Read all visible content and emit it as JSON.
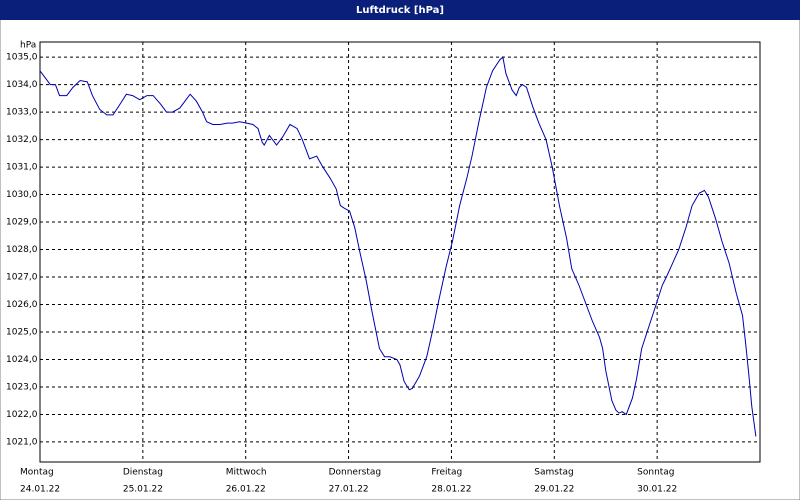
{
  "chart_data": {
    "type": "line",
    "title": "Luftdruck [hPa]",
    "y_label": "hPa",
    "color": "#0000b0",
    "grid": true,
    "xlim": [
      0,
      7
    ],
    "ylim": [
      1020.27,
      1035.55
    ],
    "xticks": [
      {
        "value": 0,
        "label": "Montag",
        "date": "24.01.22"
      },
      {
        "value": 1,
        "label": "Dienstag",
        "date": "25.01.22"
      },
      {
        "value": 2,
        "label": "Mittwoch",
        "date": "26.01.22"
      },
      {
        "value": 3,
        "label": "Donnerstag",
        "date": "27.01.22"
      },
      {
        "value": 4,
        "label": "Freitag",
        "date": "28.01.22"
      },
      {
        "value": 5,
        "label": "Samstag",
        "date": "29.01.22"
      },
      {
        "value": 6,
        "label": "Sonntag",
        "date": "30.01.22"
      }
    ],
    "yticks": [
      {
        "value": 1021,
        "label": "1021,0"
      },
      {
        "value": 1022,
        "label": "1022,0"
      },
      {
        "value": 1023,
        "label": "1023,0"
      },
      {
        "value": 1024,
        "label": "1024,0"
      },
      {
        "value": 1025,
        "label": "1025,0"
      },
      {
        "value": 1026,
        "label": "1026,0"
      },
      {
        "value": 1027,
        "label": "1027,0"
      },
      {
        "value": 1028,
        "label": "1028,0"
      },
      {
        "value": 1029,
        "label": "1029,0"
      },
      {
        "value": 1030,
        "label": "1030,0"
      },
      {
        "value": 1031,
        "label": "1031,0"
      },
      {
        "value": 1032,
        "label": "1032,0"
      },
      {
        "value": 1033,
        "label": "1033,0"
      },
      {
        "value": 1034,
        "label": "1034,0"
      },
      {
        "value": 1035,
        "label": "1035,0"
      }
    ],
    "x": [
      0,
      0.1,
      0.15,
      0.19,
      0.26,
      0.32,
      0.39,
      0.46,
      0.51,
      0.58,
      0.65,
      0.71,
      0.78,
      0.84,
      0.9,
      0.97,
      1.04,
      1.1,
      1.17,
      1.23,
      1.29,
      1.36,
      1.43,
      1.46,
      1.52,
      1.58,
      1.62,
      1.68,
      1.75,
      1.82,
      1.87,
      1.94,
      2.01,
      2.07,
      2.12,
      2.16,
      2.18,
      2.23,
      2.3,
      2.36,
      2.43,
      2.5,
      2.55,
      2.62,
      2.69,
      2.75,
      2.82,
      2.88,
      2.92,
      2.96,
      3.01,
      3.06,
      3.11,
      3.17,
      3.23,
      3.3,
      3.35,
      3.4,
      3.47,
      3.5,
      3.54,
      3.59,
      3.62,
      3.69,
      3.76,
      3.82,
      3.88,
      3.95,
      4.01,
      4.08,
      4.15,
      4.2,
      4.27,
      4.34,
      4.4,
      4.47,
      4.5,
      4.53,
      4.59,
      4.63,
      4.66,
      4.69,
      4.73,
      4.79,
      4.85,
      4.92,
      4.98,
      5.05,
      5.12,
      5.17,
      5.24,
      5.31,
      5.37,
      5.44,
      5.47,
      5.5,
      5.56,
      5.6,
      5.63,
      5.66,
      5.7,
      5.76,
      5.8,
      5.85,
      5.92,
      5.99,
      6.05,
      6.09,
      6.15,
      6.21,
      6.28,
      6.34,
      6.41,
      6.46,
      6.5,
      6.57,
      6.63,
      6.7,
      6.77,
      6.83,
      6.86,
      6.89,
      6.92,
      6.96
    ],
    "values": [
      1034.5,
      1034.0,
      1034.0,
      1033.6,
      1033.6,
      1033.9,
      1034.15,
      1034.1,
      1033.6,
      1033.1,
      1032.9,
      1032.9,
      1033.3,
      1033.65,
      1033.6,
      1033.45,
      1033.6,
      1033.6,
      1033.3,
      1033.0,
      1033.0,
      1033.15,
      1033.5,
      1033.65,
      1033.4,
      1033.0,
      1032.65,
      1032.55,
      1032.55,
      1032.6,
      1032.6,
      1032.65,
      1032.6,
      1032.55,
      1032.4,
      1031.9,
      1031.8,
      1032.15,
      1031.8,
      1032.1,
      1032.55,
      1032.4,
      1032.0,
      1031.3,
      1031.4,
      1031.0,
      1030.6,
      1030.2,
      1029.6,
      1029.5,
      1029.4,
      1028.8,
      1027.9,
      1026.9,
      1025.7,
      1024.4,
      1024.1,
      1024.1,
      1024.0,
      1023.8,
      1023.2,
      1022.9,
      1022.95,
      1023.4,
      1024.1,
      1025.1,
      1026.2,
      1027.4,
      1028.3,
      1029.6,
      1030.6,
      1031.4,
      1032.7,
      1033.9,
      1034.5,
      1034.9,
      1035.0,
      1034.4,
      1033.8,
      1033.6,
      1033.9,
      1034.0,
      1033.9,
      1033.2,
      1032.6,
      1032.0,
      1031.0,
      1029.6,
      1028.4,
      1027.3,
      1026.7,
      1026.0,
      1025.4,
      1024.8,
      1024.4,
      1023.6,
      1022.5,
      1022.15,
      1022.05,
      1022.1,
      1022.0,
      1022.6,
      1023.3,
      1024.4,
      1025.2,
      1026.0,
      1026.7,
      1027.0,
      1027.5,
      1028.0,
      1028.8,
      1029.6,
      1030.05,
      1030.15,
      1029.9,
      1029.1,
      1028.3,
      1027.5,
      1026.4,
      1025.6,
      1024.6,
      1023.5,
      1022.3,
      1021.2
    ]
  }
}
